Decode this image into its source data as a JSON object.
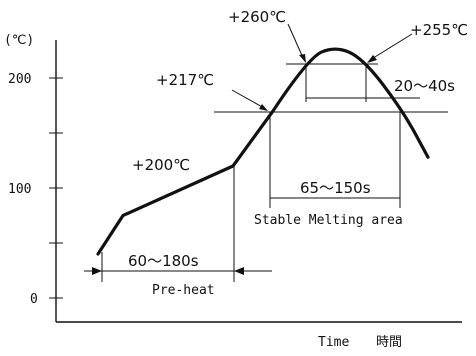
{
  "chart_data": {
    "type": "line",
    "y_unit_label": "(℃)",
    "x_label_en": "Time",
    "x_label_jp": "時間",
    "ylim": [
      0,
      260
    ],
    "y_ticks": [
      {
        "value": 0,
        "label": "0"
      },
      {
        "value": 100,
        "label": "100"
      },
      {
        "value": 200,
        "label": "200"
      }
    ],
    "series": [
      {
        "points": [
          {
            "x": 0,
            "y": 40
          },
          {
            "x": 25,
            "y": 75
          },
          {
            "x": 135,
            "y": 120
          },
          {
            "x": 175,
            "y": 170
          },
          {
            "x": 210,
            "y": 218
          },
          {
            "x": 237,
            "y": 229
          },
          {
            "x": 265,
            "y": 218
          },
          {
            "x": 305,
            "y": 170
          },
          {
            "x": 330,
            "y": 128
          }
        ]
      }
    ],
    "annotations": {
      "peak_temp": "+260℃",
      "peak_band_temp": "+255℃",
      "melt_temp": "+217℃",
      "preheat_end_temp": "+200℃",
      "peak_time": "20～40s",
      "melt_time": "65～150s",
      "melt_caption": "Stable Melting area",
      "preheat_time": "60～180s",
      "preheat_caption": "Pre-heat"
    }
  }
}
